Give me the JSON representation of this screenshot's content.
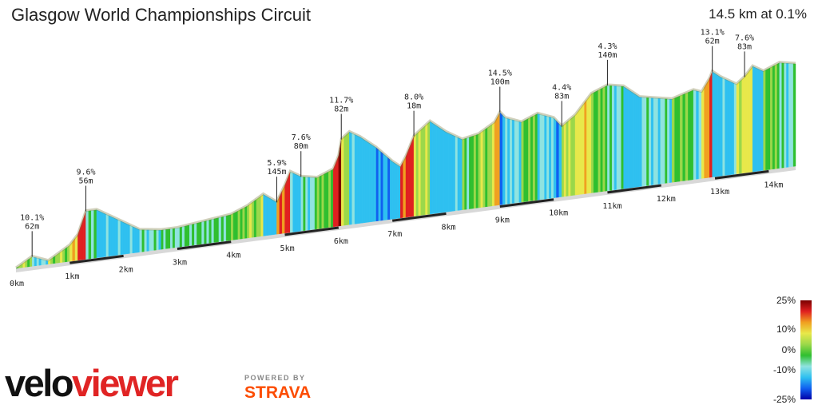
{
  "chart_data": {
    "type": "area",
    "title": "Glasgow World Championships Circuit",
    "summary": "14.5 km at 0.1%",
    "x_unit": "km",
    "x_ticks": [
      "0km",
      "1km",
      "2km",
      "3km",
      "4km",
      "5km",
      "6km",
      "7km",
      "8km",
      "9km",
      "10km",
      "11km",
      "12km",
      "13km",
      "14km"
    ],
    "distance_km": [
      0,
      0.3,
      0.6,
      1.0,
      1.15,
      1.3,
      1.5,
      1.9,
      2.3,
      2.7,
      3.0,
      3.5,
      4.0,
      4.3,
      4.6,
      4.85,
      5.0,
      5.1,
      5.3,
      5.6,
      5.9,
      6.0,
      6.05,
      6.2,
      6.4,
      6.7,
      7.0,
      7.15,
      7.25,
      7.4,
      7.7,
      8.0,
      8.3,
      8.6,
      8.9,
      9.0,
      9.1,
      9.4,
      9.7,
      10.0,
      10.15,
      10.4,
      10.7,
      11.0,
      11.3,
      11.6,
      11.9,
      12.2,
      12.4,
      12.6,
      12.75,
      12.9,
      12.95,
      13.1,
      13.4,
      13.55,
      13.7,
      13.9,
      14.2,
      14.5
    ],
    "relative_height": [
      0,
      6,
      2,
      10,
      16,
      30,
      30,
      22,
      14,
      12,
      12,
      14,
      16,
      20,
      26,
      20,
      30,
      38,
      34,
      32,
      36,
      44,
      54,
      58,
      54,
      46,
      36,
      32,
      38,
      50,
      58,
      50,
      44,
      46,
      52,
      58,
      54,
      50,
      54,
      50,
      44,
      50,
      62,
      66,
      64,
      56,
      54,
      52,
      54,
      56,
      54,
      62,
      66,
      62,
      56,
      60,
      66,
      62,
      66,
      64
    ],
    "color_scale": {
      "ticks": [
        "25%",
        "10%",
        "0%",
        "-10%",
        "-25%"
      ],
      "colors": [
        "#7a0000",
        "#e02020",
        "#f0a020",
        "#e8e84a",
        "#9bd84a",
        "#2fbf2f",
        "#8fe3e0",
        "#2ec0f0",
        "#1060f0",
        "#0000a8"
      ]
    },
    "annotations": [
      {
        "km": 0.3,
        "grade": "10.1%",
        "length": "62m"
      },
      {
        "km": 1.3,
        "grade": "9.6%",
        "length": "56m"
      },
      {
        "km": 4.85,
        "grade": "5.9%",
        "length": "145m"
      },
      {
        "km": 5.3,
        "grade": "7.6%",
        "length": "80m"
      },
      {
        "km": 6.05,
        "grade": "11.7%",
        "length": "82m"
      },
      {
        "km": 7.4,
        "grade": "8.0%",
        "length": "18m"
      },
      {
        "km": 9.0,
        "grade": "14.5%",
        "length": "100m"
      },
      {
        "km": 10.15,
        "grade": "4.4%",
        "length": "83m"
      },
      {
        "km": 11.0,
        "grade": "4.3%",
        "length": "140m"
      },
      {
        "km": 12.95,
        "grade": "13.1%",
        "length": "62m"
      },
      {
        "km": 13.55,
        "grade": "7.6%",
        "length": "83m"
      }
    ],
    "ylabel": "",
    "xlabel": ""
  },
  "branding": {
    "logo_part1": "velo",
    "logo_part2": "viewer",
    "powered_by": "POWERED BY",
    "strava": "STRAVA"
  }
}
